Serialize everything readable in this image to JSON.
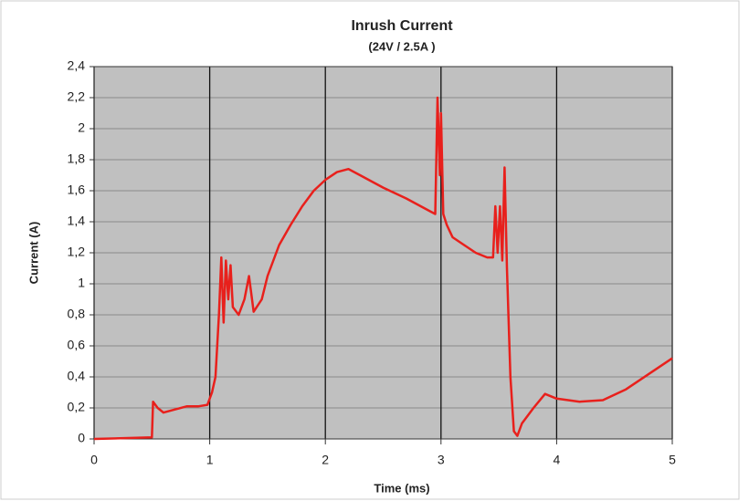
{
  "chart_data": {
    "type": "line",
    "title": "Inrush Current",
    "subtitle": "(24V / 2.5A )",
    "x_label": "Time (ms)",
    "y_label": "Current (A)",
    "x": [
      0,
      0.5,
      0.51,
      0.55,
      0.6,
      0.7,
      0.8,
      0.9,
      0.98,
      1.02,
      1.05,
      1.08,
      1.1,
      1.12,
      1.14,
      1.16,
      1.18,
      1.2,
      1.25,
      1.3,
      1.34,
      1.38,
      1.45,
      1.5,
      1.6,
      1.7,
      1.8,
      1.9,
      2.0,
      2.1,
      2.2,
      2.3,
      2.5,
      2.7,
      2.9,
      2.95,
      2.97,
      2.99,
      3.0,
      3.02,
      3.05,
      3.1,
      3.2,
      3.3,
      3.4,
      3.45,
      3.47,
      3.49,
      3.51,
      3.53,
      3.55,
      3.57,
      3.6,
      3.63,
      3.66,
      3.7,
      3.8,
      3.9,
      4.0,
      4.2,
      4.4,
      4.6,
      4.8,
      5.0
    ],
    "series": [
      {
        "name": "Current",
        "color": "#e8201c",
        "values": [
          0,
          0.01,
          0.24,
          0.2,
          0.17,
          0.19,
          0.21,
          0.21,
          0.22,
          0.3,
          0.4,
          0.8,
          1.17,
          0.75,
          1.15,
          0.9,
          1.12,
          0.85,
          0.8,
          0.9,
          1.05,
          0.82,
          0.9,
          1.05,
          1.25,
          1.38,
          1.5,
          1.6,
          1.67,
          1.72,
          1.74,
          1.7,
          1.62,
          1.55,
          1.47,
          1.45,
          2.2,
          1.7,
          2.1,
          1.45,
          1.38,
          1.3,
          1.25,
          1.2,
          1.17,
          1.17,
          1.5,
          1.2,
          1.5,
          1.15,
          1.75,
          1.1,
          0.4,
          0.05,
          0.02,
          0.1,
          0.2,
          0.29,
          0.26,
          0.24,
          0.25,
          0.32,
          0.42,
          0.52
        ]
      }
    ],
    "xlim": [
      0,
      5
    ],
    "xticks": [
      0,
      1,
      2,
      3,
      4,
      5
    ],
    "ylim": [
      0,
      2.4
    ],
    "yticks": [
      0,
      {
        "value": 0.2,
        "label": "0,2"
      },
      {
        "value": 0.4,
        "label": "0,4"
      },
      {
        "value": 0.6,
        "label": "0,6"
      },
      {
        "value": 0.8,
        "label": "0,8"
      },
      1,
      {
        "value": 1.2,
        "label": "1,2"
      },
      {
        "value": 1.4,
        "label": "1,4"
      },
      {
        "value": 1.6,
        "label": "1,6"
      },
      {
        "value": 1.8,
        "label": "1,8"
      },
      2,
      {
        "value": 2.2,
        "label": "2,2"
      },
      {
        "value": 2.4,
        "label": "2,4"
      }
    ],
    "grid": true,
    "background": "#c0c0c0"
  }
}
